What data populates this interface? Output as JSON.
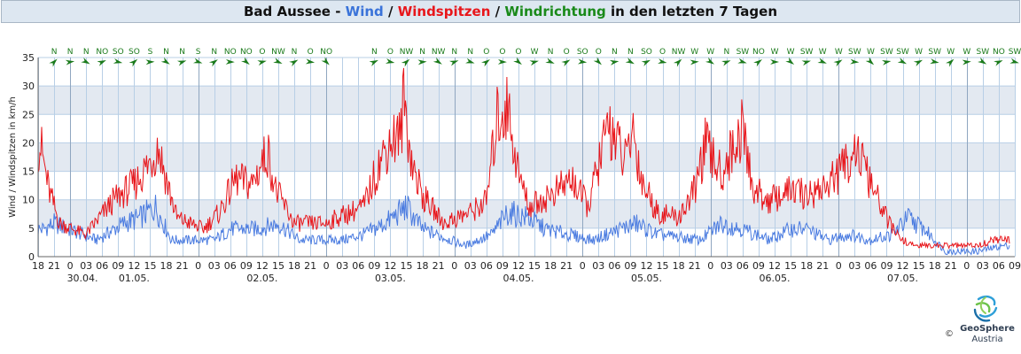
{
  "title": {
    "station": "Bad Aussee",
    "sep1": " - ",
    "wind": "Wind",
    "sep2": " / ",
    "spikes": "Windspitzen",
    "sep3": " / ",
    "direction": "Windrichtung",
    "rest": " in den letzten 7 Tagen"
  },
  "logo": {
    "name": "GeoSphere",
    "sub": "Austria",
    "copyright": "©"
  },
  "colors": {
    "wind": "#4a7be0",
    "spikes": "#e8161b",
    "direction": "#1a7a1a",
    "band": "#e3e9f1",
    "grid_minor": "#b8cfe6",
    "grid_major": "#8fa6c0"
  },
  "chart_data": {
    "type": "line",
    "ylabel": "Wind / Windspitzen in km/h",
    "ylim": [
      0,
      35
    ],
    "yticks": [
      "0",
      "5",
      "10",
      "15",
      "20",
      "25",
      "30",
      "35"
    ],
    "xlim_hours": [
      -6,
      177
    ],
    "xticks": [
      "18",
      "21",
      "0",
      "03",
      "06",
      "09",
      "12",
      "15",
      "18",
      "21",
      "0",
      "03",
      "06",
      "09",
      "12",
      "15",
      "18",
      "21",
      "0",
      "03",
      "06",
      "09",
      "12",
      "15",
      "18",
      "21",
      "0",
      "03",
      "06",
      "09",
      "12",
      "15",
      "18",
      "21",
      "0",
      "03",
      "06",
      "09",
      "12",
      "15",
      "18",
      "21",
      "0",
      "03",
      "06",
      "09",
      "12",
      "15",
      "18",
      "21",
      "0",
      "03",
      "06",
      "09",
      "12",
      "15",
      "18",
      "21",
      "0",
      "03",
      "06",
      "09"
    ],
    "dates": [
      "30.04.",
      "01.05.",
      "02.05.",
      "03.05.",
      "04.05.",
      "05.05.",
      "06.05.",
      "07.05."
    ],
    "directions": [
      "N",
      "N",
      "N",
      "NO",
      "SO",
      "SO",
      "S",
      "N",
      "N",
      "S",
      "N",
      "NO",
      "NO",
      "O",
      "NW",
      "N",
      "O",
      "NO",
      "",
      "",
      "N",
      "O",
      "NW",
      "N",
      "NW",
      "N",
      "N",
      "O",
      "O",
      "O",
      "W",
      "N",
      "O",
      "SO",
      "O",
      "N",
      "N",
      "SO",
      "O",
      "NW",
      "W",
      "W",
      "N",
      "SW",
      "NO",
      "W",
      "W",
      "SW",
      "W",
      "W",
      "SW",
      "W",
      "SW",
      "SW",
      "W",
      "SW",
      "W",
      "W",
      "SW",
      "NO",
      "SW"
    ],
    "series": [
      {
        "name": "Wind",
        "peaks": [
          [
            -5,
            5
          ],
          [
            -3,
            6
          ],
          [
            5,
            3
          ],
          [
            10,
            6
          ],
          [
            13,
            7
          ],
          [
            16,
            9
          ],
          [
            19,
            3
          ],
          [
            27,
            3
          ],
          [
            30,
            5
          ],
          [
            35,
            5
          ],
          [
            39,
            6
          ],
          [
            43,
            3
          ],
          [
            51,
            3
          ],
          [
            55,
            4
          ],
          [
            59,
            6
          ],
          [
            63,
            9
          ],
          [
            66,
            5
          ],
          [
            74,
            2
          ],
          [
            79,
            4
          ],
          [
            82,
            8
          ],
          [
            86,
            7
          ],
          [
            89,
            5
          ],
          [
            98,
            3
          ],
          [
            103,
            5
          ],
          [
            106,
            6
          ],
          [
            110,
            4
          ],
          [
            118,
            3
          ],
          [
            122,
            6
          ],
          [
            126,
            5
          ],
          [
            131,
            3
          ],
          [
            135,
            5
          ],
          [
            138,
            5
          ],
          [
            142,
            3
          ],
          [
            146,
            4
          ],
          [
            150,
            3
          ],
          [
            154,
            4
          ],
          [
            157,
            7
          ],
          [
            160,
            5
          ],
          [
            164,
            1
          ],
          [
            170,
            1
          ],
          [
            175,
            2
          ]
        ]
      },
      {
        "name": "Windspitzen",
        "peaks": [
          [
            -5.5,
            20
          ],
          [
            -4,
            12
          ],
          [
            -2,
            6
          ],
          [
            3,
            4
          ],
          [
            8,
            10
          ],
          [
            12,
            13
          ],
          [
            15,
            17
          ],
          [
            16.5,
            20
          ],
          [
            18,
            14
          ],
          [
            20,
            7
          ],
          [
            25,
            5
          ],
          [
            28,
            8
          ],
          [
            31,
            14
          ],
          [
            34,
            13
          ],
          [
            37,
            19
          ],
          [
            38.5,
            12
          ],
          [
            42,
            6
          ],
          [
            48,
            6
          ],
          [
            50,
            7
          ],
          [
            55,
            9
          ],
          [
            58,
            17
          ],
          [
            60,
            21
          ],
          [
            62,
            22
          ],
          [
            62.5,
            29
          ],
          [
            64,
            17
          ],
          [
            66,
            11
          ],
          [
            70,
            6
          ],
          [
            75,
            8
          ],
          [
            78,
            10
          ],
          [
            80,
            25
          ],
          [
            82,
            27
          ],
          [
            84,
            15
          ],
          [
            86,
            9
          ],
          [
            90,
            11
          ],
          [
            94,
            14
          ],
          [
            97,
            9
          ],
          [
            101,
            24
          ],
          [
            104,
            17
          ],
          [
            105.5,
            23
          ],
          [
            107,
            14
          ],
          [
            110,
            8
          ],
          [
            114,
            7
          ],
          [
            117,
            12
          ],
          [
            119,
            20
          ],
          [
            122,
            15
          ],
          [
            126,
            23
          ],
          [
            128,
            12
          ],
          [
            131,
            10
          ],
          [
            135,
            12
          ],
          [
            138,
            11
          ],
          [
            142,
            13
          ],
          [
            145,
            16
          ],
          [
            147,
            20
          ],
          [
            150,
            13
          ],
          [
            154,
            5
          ],
          [
            156,
            3
          ],
          [
            158,
            2
          ],
          [
            170,
            2
          ],
          [
            173,
            3
          ],
          [
            176,
            3
          ]
        ]
      }
    ]
  }
}
